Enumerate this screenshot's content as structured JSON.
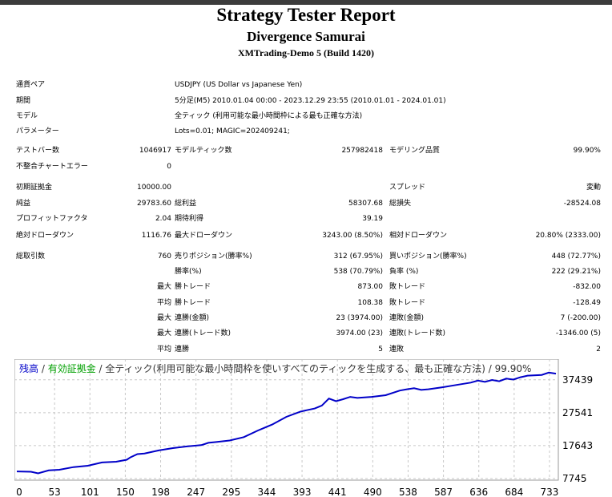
{
  "header": {
    "title": "Strategy Tester Report",
    "ea_name": "Divergence Samurai",
    "server": "XMTrading-Demo 5 (Build 1420)"
  },
  "settings": [
    {
      "label": "通貨ペア",
      "value": "USDJPY (US Dollar vs Japanese Yen)"
    },
    {
      "label": "期間",
      "value": "5分足(M5) 2010.01.04 00:00 - 2023.12.29 23:55 (2010.01.01 - 2024.01.01)"
    },
    {
      "label": "モデル",
      "value": "全ティック (利用可能な最小時間枠による最も正確な方法)"
    },
    {
      "label": "パラメーター",
      "value": "Lots=0.01; MAGIC=202409241;"
    }
  ],
  "stats": {
    "bars_label": "テストバー数",
    "bars": "1046917",
    "ticks_label": "モデルティック数",
    "ticks": "257982418",
    "quality_label": "モデリング品質",
    "quality": "99.90%",
    "mismatch_label": "不整合チャートエラー",
    "mismatch": "0",
    "deposit_label": "初期証拠金",
    "deposit": "10000.00",
    "spread_label": "スプレッド",
    "spread": "変動",
    "net_label": "純益",
    "net": "29783.60",
    "gross_profit_label": "総利益",
    "gross_profit": "58307.68",
    "gross_loss_label": "総損失",
    "gross_loss": "-28524.08",
    "pf_label": "プロフィットファクタ",
    "pf": "2.04",
    "expected_label": "期待利得",
    "expected": "39.19",
    "abs_dd_label": "絶対ドローダウン",
    "abs_dd": "1116.76",
    "max_dd_label": "最大ドローダウン",
    "max_dd": "3243.00 (8.50%)",
    "rel_dd_label": "相対ドローダウン",
    "rel_dd": "20.80% (2333.00)",
    "trades_label": "総取引数",
    "trades": "760",
    "short_label": "売りポジション(勝率%)",
    "short": "312 (67.95%)",
    "long_label": "買いポジション(勝率%)",
    "long": "448 (72.77%)",
    "win_label": "勝率(%)",
    "win": "538 (70.79%)",
    "loss_label": "負率 (%)",
    "loss": "222 (29.21%)",
    "max_label": "最大",
    "avg_label": "平均",
    "largest_win_label": "勝トレード",
    "largest_win": "873.00",
    "largest_loss_label": "敗トレード",
    "largest_loss": "-832.00",
    "avg_win_label": "勝トレード",
    "avg_win": "108.38",
    "avg_loss_label": "敗トレード",
    "avg_loss": "-128.49",
    "cons_win_money_label": "連勝(金額)",
    "cons_win_money": "23 (3974.00)",
    "cons_loss_money_label": "連敗(金額)",
    "cons_loss_money": "7 (-200.00)",
    "cons_win_count_label": "連勝(トレード数)",
    "cons_win_count": "3974.00 (23)",
    "cons_loss_count_label": "連敗(トレード数)",
    "cons_loss_count": "-1346.00 (5)",
    "avg_cons_win_label": "連勝",
    "avg_cons_win": "5",
    "avg_cons_loss_label": "連敗",
    "avg_cons_loss": "2"
  },
  "chart_data": {
    "type": "line",
    "legend": {
      "balance": "残高",
      "sep1": " / ",
      "equity": "有効証拠金",
      "rest": " / 全ティック(利用可能な最小時間枠を使いすべてのティックを生成する、最も正確な方法) / 99.90%"
    },
    "colors": {
      "balance": "#0000c8",
      "equity": "#00a000",
      "grid": "#c8c8c8"
    },
    "xlim": [
      0,
      760
    ],
    "ylim": [
      7745,
      39800
    ],
    "x_ticks": [
      "0",
      "53",
      "101",
      "150",
      "198",
      "247",
      "295",
      "344",
      "393",
      "441",
      "490",
      "538",
      "587",
      "636",
      "684",
      "733"
    ],
    "y_ticks": [
      "37439",
      "27541",
      "17643",
      "7745"
    ],
    "series": [
      {
        "x": [
          0,
          20,
          30,
          45,
          60,
          80,
          100,
          120,
          140,
          155,
          160,
          170,
          180,
          200,
          220,
          240,
          260,
          270,
          280,
          300,
          320,
          340,
          350,
          360,
          380,
          400,
          420,
          430,
          440,
          450,
          460,
          470,
          480,
          500,
          520,
          540,
          550,
          560,
          570,
          580,
          600,
          620,
          640,
          650,
          660,
          670,
          680,
          690,
          700,
          710,
          720,
          740,
          750,
          760
        ],
        "values": [
          9900,
          9800,
          9300,
          10200,
          10400,
          11200,
          11600,
          12600,
          12800,
          13400,
          14100,
          15100,
          15300,
          16200,
          16900,
          17400,
          17800,
          18500,
          18700,
          19200,
          20200,
          22200,
          23100,
          24000,
          26300,
          27900,
          28800,
          29700,
          31800,
          31000,
          31600,
          32300,
          32000,
          32300,
          32800,
          34200,
          34600,
          34900,
          34400,
          34600,
          35200,
          35900,
          36600,
          37200,
          36800,
          37400,
          37000,
          37800,
          37500,
          38200,
          38700,
          38900,
          39600,
          39300
        ]
      }
    ]
  }
}
